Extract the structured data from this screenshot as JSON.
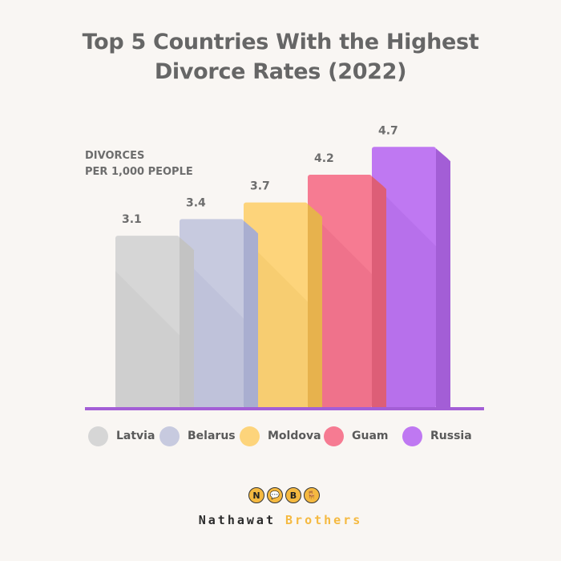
{
  "title_lines": [
    "Top 5 Countries With the Highest",
    "Divorce Rates (2022)"
  ],
  "ylabel_lines": [
    "DIVORCES",
    "PER 1,000 PEOPLE"
  ],
  "chart_data": {
    "type": "bar",
    "title": "Top 5 Countries With the Highest Divorce Rates (2022)",
    "ylabel": "DIVORCES PER 1,000 PEOPLE",
    "xlabel": "",
    "categories": [
      "Latvia",
      "Belarus",
      "Moldova",
      "Guam",
      "Russia"
    ],
    "values": [
      3.1,
      3.4,
      3.7,
      4.2,
      4.7
    ],
    "value_labels": [
      "3.1",
      "3.4",
      "3.7",
      "4.2",
      "4.7"
    ],
    "colors": [
      "#d6d6d6",
      "#c7cadf",
      "#fdd47b",
      "#f67b92",
      "#bf78f2"
    ],
    "side_colors": [
      "#c3c3c3",
      "#a9aed0",
      "#e7b24d",
      "#dd5e77",
      "#a35ed6"
    ],
    "shade_colors": [
      "#cbcbcb",
      "#b8bcd6",
      "#f2c76a",
      "#ea6c85",
      "#b06ae6"
    ],
    "legend_position": "bottom",
    "baseline_color": "#a35ed6",
    "grid": false
  },
  "brand": {
    "icons": [
      "N",
      "💬",
      "B",
      "🪑"
    ],
    "word_1": "Nathawat",
    "word_2": "Brothers"
  }
}
